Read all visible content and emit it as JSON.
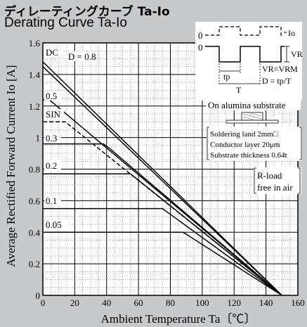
{
  "title_jp": "ディレーティングカーブ Ta-Io",
  "title_en": "Derating Curve Ta-Io",
  "chart_data": {
    "type": "line",
    "xlabel": "Ambient Temperature Ta〔℃〕",
    "ylabel": "Average Rectified Forward Current Io [A]",
    "xlim": [
      0,
      160
    ],
    "ylim": [
      0,
      1.6
    ],
    "xticks": [
      0,
      20,
      40,
      60,
      80,
      100,
      120,
      140,
      160
    ],
    "yticks": [
      0,
      0.2,
      0.4,
      0.6,
      0.8,
      1,
      1.2,
      1.4,
      1.6
    ],
    "xtick_labels": [
      "0",
      "20",
      "40",
      "60",
      "80",
      "100",
      "120",
      "140",
      "160"
    ],
    "ytick_labels": [
      "0",
      "0.2",
      "0.4",
      "0.6",
      "0.8",
      "1",
      "1.2",
      "1.4",
      "1.6"
    ],
    "grid": true,
    "series": [
      {
        "name": "DC",
        "label": "DC",
        "style": "solid",
        "points": [
          [
            0,
            1.48
          ],
          [
            150,
            0
          ]
        ]
      },
      {
        "name": "D = 0.8",
        "label": "D = 0.8",
        "style": "solid",
        "points": [
          [
            0,
            1.45
          ],
          [
            150,
            0
          ]
        ]
      },
      {
        "name": "0.5",
        "label": "0.5",
        "style": "solid",
        "points": [
          [
            0,
            1.24
          ],
          [
            4,
            1.24
          ],
          [
            150,
            0
          ]
        ]
      },
      {
        "name": "SIN",
        "label": "SIN",
        "style": "dashed",
        "points": [
          [
            0,
            1.1
          ],
          [
            14,
            1.1
          ],
          [
            150,
            0
          ]
        ]
      },
      {
        "name": "0.3",
        "label": "0.3",
        "style": "solid",
        "points": [
          [
            0,
            0.96
          ],
          [
            38,
            0.96
          ],
          [
            42,
            0.93
          ],
          [
            150,
            0
          ]
        ]
      },
      {
        "name": "0.2",
        "label": "0.2",
        "style": "solid",
        "points": [
          [
            0,
            0.77
          ],
          [
            55,
            0.77
          ],
          [
            150,
            0
          ]
        ]
      },
      {
        "name": "0.1",
        "label": "0.1",
        "style": "solid",
        "points": [
          [
            0,
            0.55
          ],
          [
            75,
            0.55
          ],
          [
            150,
            0
          ]
        ]
      },
      {
        "name": "0.05",
        "label": "0.05",
        "style": "solid",
        "points": [
          [
            0,
            0.4
          ],
          [
            88,
            0.4
          ],
          [
            150,
            0
          ]
        ]
      }
    ]
  },
  "inset": {
    "level_zero_1": "0",
    "level_zero_2": "0",
    "io_label": "Io",
    "vr_label": "VR",
    "tp_label": "tp",
    "t_label": "T",
    "formula_1": "VR=VRM",
    "formula_2": "D = tp/T",
    "substrate_title": "On alumina substrate",
    "spec_1": "Soldering land 2mm□",
    "spec_2": "Conductor layer 20μm",
    "spec_3": "Substrate thickness 0.64t",
    "rload_1": "R-load",
    "rload_2": "free in air"
  },
  "colors": {
    "background": "#c8c9cb",
    "plot_background": "#ffffff",
    "line": "#000000"
  }
}
